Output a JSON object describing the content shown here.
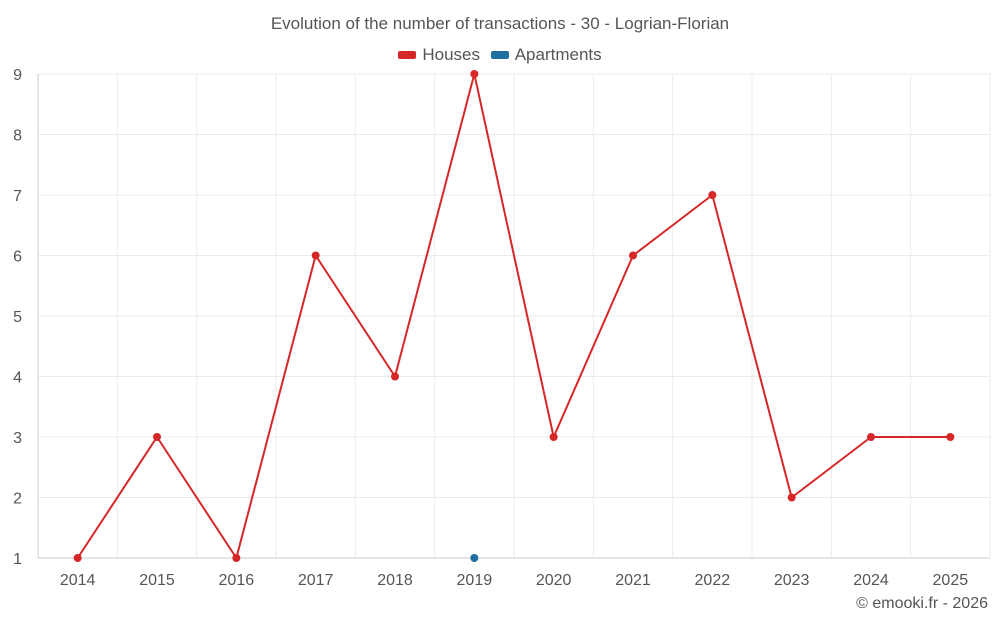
{
  "chart_data": {
    "type": "line",
    "title": "Evolution of the number of transactions - 30 - Logrian-Florian",
    "xlabel": "",
    "ylabel": "",
    "x": [
      "2014",
      "2015",
      "2016",
      "2017",
      "2018",
      "2019",
      "2020",
      "2021",
      "2022",
      "2023",
      "2024",
      "2025"
    ],
    "ylim": [
      1,
      9
    ],
    "yticks": [
      1,
      2,
      3,
      4,
      5,
      6,
      7,
      8,
      9
    ],
    "grid": true,
    "legend_position": "top-center",
    "series": [
      {
        "name": "Houses",
        "color": "#d62728",
        "values": [
          1,
          3,
          1,
          6,
          4,
          9,
          3,
          6,
          7,
          2,
          3,
          3
        ]
      },
      {
        "name": "Apartments",
        "color": "#1f6fa0",
        "values": [
          null,
          null,
          null,
          null,
          null,
          1,
          null,
          null,
          null,
          null,
          null,
          null
        ]
      }
    ]
  },
  "footer": {
    "credit": "© emooki.fr - 2026"
  }
}
